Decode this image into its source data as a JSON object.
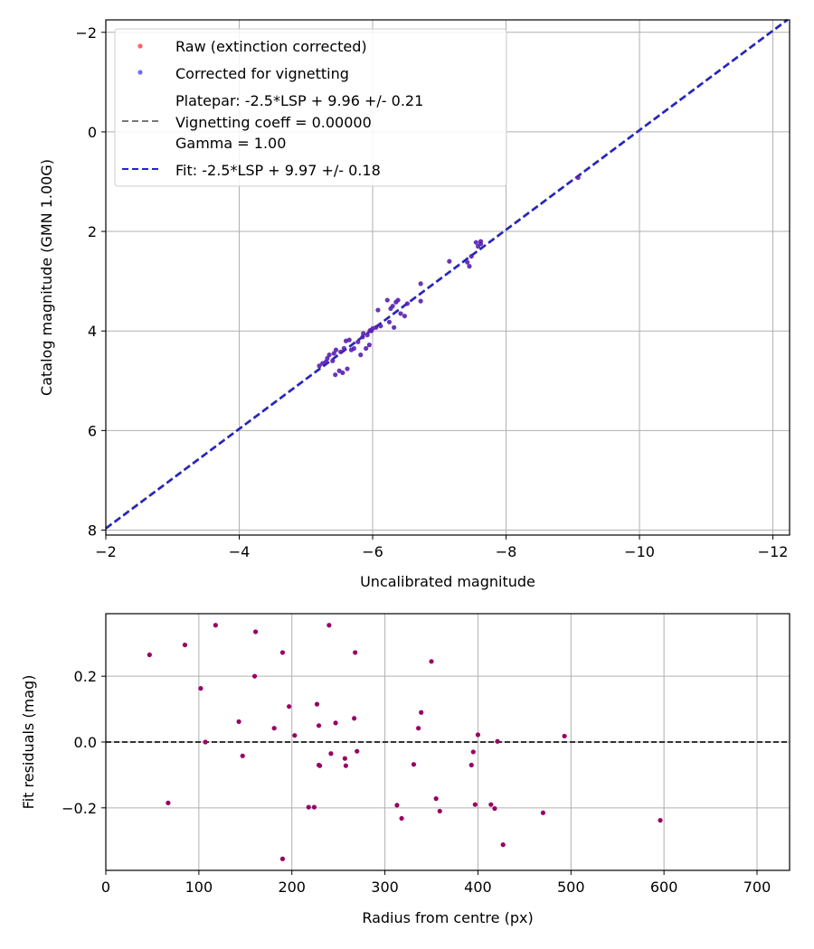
{
  "chart_data": [
    {
      "type": "scatter",
      "xlabel": "Uncalibrated magnitude",
      "ylabel": "Catalog magnitude (GMN 1.00G)",
      "xlim": [
        -2,
        -12.25
      ],
      "ylim": [
        -2.25,
        8.1
      ],
      "x_inverted": true,
      "y_inverted": true,
      "xticks": [
        -2,
        -4,
        -6,
        -8,
        -10,
        -12
      ],
      "yticks": [
        -2,
        0,
        2,
        4,
        6,
        8
      ],
      "xtick_labels": [
        "−2",
        "−4",
        "−6",
        "−8",
        "−10",
        "−12"
      ],
      "ytick_labels": [
        "−2",
        "0",
        "2",
        "4",
        "6",
        "8"
      ],
      "grid": true,
      "legend_position": "top-left",
      "legend": [
        {
          "kind": "marker",
          "color": "#ff3b3b",
          "label": "Raw (extinction corrected)"
        },
        {
          "kind": "marker",
          "color": "#4a4aff",
          "label": "Corrected for vignetting"
        },
        {
          "kind": "dashed-line",
          "color": "#777777",
          "lines": [
            "Platepar: -2.5*LSP + 9.96 +/- 0.21",
            "Vignetting coeff = 0.00000",
            "Gamma = 1.00"
          ]
        },
        {
          "kind": "dashed-line",
          "color": "#2222dd",
          "label": "Fit: -2.5*LSP + 9.97 +/- 0.18"
        }
      ],
      "fit_line": {
        "slope": 1.0,
        "intercept": 9.97,
        "color": "#2222cc"
      },
      "platepar_line": {
        "slope": 1.0,
        "intercept": 9.96,
        "color": "#777777"
      },
      "point_color": "#5a1fb0",
      "points": [
        [
          -5.2,
          4.7
        ],
        [
          -5.25,
          4.65
        ],
        [
          -5.3,
          4.62
        ],
        [
          -5.32,
          4.55
        ],
        [
          -5.35,
          4.48
        ],
        [
          -5.4,
          4.6
        ],
        [
          -5.42,
          4.45
        ],
        [
          -5.45,
          4.38
        ],
        [
          -5.44,
          4.88
        ],
        [
          -5.5,
          4.8
        ],
        [
          -5.52,
          4.42
        ],
        [
          -5.55,
          4.84
        ],
        [
          -5.57,
          4.35
        ],
        [
          -5.6,
          4.2
        ],
        [
          -5.62,
          4.76
        ],
        [
          -5.65,
          4.18
        ],
        [
          -5.68,
          4.38
        ],
        [
          -5.72,
          4.35
        ],
        [
          -5.78,
          4.22
        ],
        [
          -5.82,
          4.48
        ],
        [
          -5.85,
          4.12
        ],
        [
          -5.86,
          4.05
        ],
        [
          -5.9,
          4.35
        ],
        [
          -5.92,
          4.08
        ],
        [
          -5.95,
          4.28
        ],
        [
          -5.96,
          3.99
        ],
        [
          -5.98,
          4.0
        ],
        [
          -6.0,
          3.95
        ],
        [
          -6.05,
          3.93
        ],
        [
          -6.08,
          3.58
        ],
        [
          -6.12,
          3.9
        ],
        [
          -6.22,
          3.38
        ],
        [
          -6.25,
          3.82
        ],
        [
          -6.27,
          3.55
        ],
        [
          -6.3,
          3.5
        ],
        [
          -6.32,
          3.93
        ],
        [
          -6.35,
          3.42
        ],
        [
          -6.38,
          3.38
        ],
        [
          -6.42,
          3.65
        ],
        [
          -6.48,
          3.7
        ],
        [
          -6.52,
          3.45
        ],
        [
          -6.72,
          3.4
        ],
        [
          -6.72,
          3.05
        ],
        [
          -7.15,
          2.6
        ],
        [
          -7.42,
          2.62
        ],
        [
          -7.45,
          2.7
        ],
        [
          -7.48,
          2.5
        ],
        [
          -7.55,
          2.22
        ],
        [
          -7.58,
          2.3
        ],
        [
          -7.62,
          2.25
        ],
        [
          -7.62,
          2.2
        ],
        [
          -9.08,
          0.92
        ]
      ]
    },
    {
      "type": "scatter",
      "xlabel": "Radius from centre (px)",
      "ylabel": "Fit residuals (mag)",
      "xlim": [
        0,
        735
      ],
      "ylim": [
        -0.39,
        0.39
      ],
      "xticks": [
        0,
        100,
        200,
        300,
        400,
        500,
        600,
        700
      ],
      "yticks": [
        -0.2,
        0.0,
        0.2
      ],
      "xtick_labels": [
        "0",
        "100",
        "200",
        "300",
        "400",
        "500",
        "600",
        "700"
      ],
      "ytick_labels": [
        "−0.2",
        "0.0",
        "0.2"
      ],
      "grid": true,
      "reference_line": {
        "y": 0.0,
        "style": "dashed",
        "color": "#333333"
      },
      "point_color": "#990066",
      "points": [
        [
          47,
          0.265
        ],
        [
          67,
          -0.185
        ],
        [
          85,
          0.295
        ],
        [
          102,
          0.163
        ],
        [
          107,
          0.0
        ],
        [
          118,
          0.355
        ],
        [
          143,
          0.062
        ],
        [
          147,
          -0.042
        ],
        [
          160,
          0.2
        ],
        [
          161,
          0.335
        ],
        [
          181,
          0.042
        ],
        [
          190,
          0.272
        ],
        [
          190,
          -0.355
        ],
        [
          197,
          0.108
        ],
        [
          203,
          0.02
        ],
        [
          218,
          -0.198
        ],
        [
          224,
          -0.198
        ],
        [
          227,
          0.115
        ],
        [
          229,
          0.05
        ],
        [
          229,
          -0.07
        ],
        [
          230,
          -0.072
        ],
        [
          240,
          0.355
        ],
        [
          242,
          -0.035
        ],
        [
          247,
          0.058
        ],
        [
          257,
          -0.05
        ],
        [
          258,
          -0.072
        ],
        [
          267,
          0.072
        ],
        [
          268,
          0.272
        ],
        [
          270,
          -0.028
        ],
        [
          313,
          -0.192
        ],
        [
          318,
          -0.232
        ],
        [
          331,
          -0.068
        ],
        [
          336,
          0.042
        ],
        [
          339,
          0.09
        ],
        [
          350,
          0.245
        ],
        [
          355,
          -0.172
        ],
        [
          359,
          -0.21
        ],
        [
          393,
          -0.07
        ],
        [
          395,
          -0.03
        ],
        [
          397,
          -0.19
        ],
        [
          400,
          0.022
        ],
        [
          414,
          -0.19
        ],
        [
          418,
          -0.202
        ],
        [
          421,
          0.002
        ],
        [
          427,
          -0.312
        ],
        [
          470,
          -0.215
        ],
        [
          493,
          0.018
        ],
        [
          596,
          -0.238
        ]
      ]
    }
  ]
}
